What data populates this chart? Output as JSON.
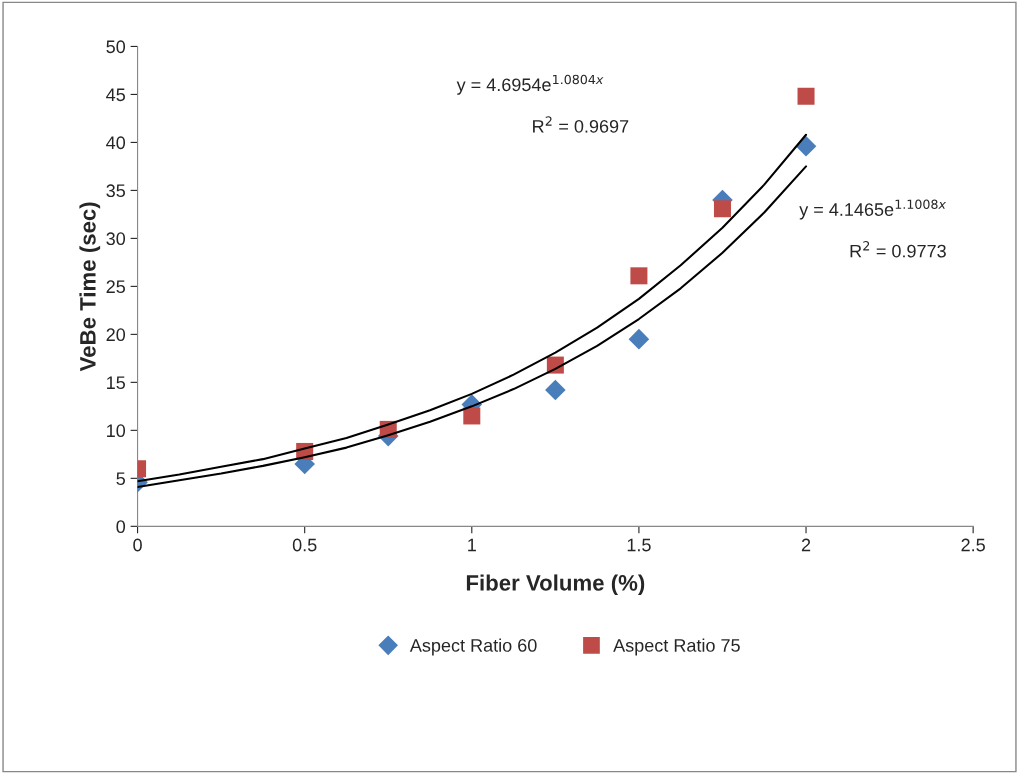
{
  "chart_data": {
    "type": "scatter",
    "xlabel": "Fiber Volume (%)",
    "ylabel": "VeBe Time (sec)",
    "x": [
      0,
      0.5,
      0.75,
      1,
      1.25,
      1.5,
      1.75,
      2
    ],
    "series": [
      {
        "name": "Aspect Ratio 60",
        "color": "#4a7ebb",
        "marker": "diamond",
        "values": [
          4.6,
          6.5,
          9.4,
          12.7,
          14.2,
          19.5,
          34,
          39.6
        ]
      },
      {
        "name": "Aspect Ratio 75",
        "color": "#be4b48",
        "marker": "square",
        "values": [
          6.0,
          7.8,
          10.1,
          11.5,
          16.8,
          26.1,
          33.1,
          44.8
        ]
      },
      {
        "type": "line",
        "color": "#000000",
        "marker": "none",
        "x": [
          0,
          0.125,
          0.25,
          0.375,
          0.5,
          0.625,
          0.75,
          0.875,
          1,
          1.125,
          1.25,
          1.375,
          1.5,
          1.625,
          1.75,
          1.875,
          2
        ],
        "values": [
          4.7,
          5.4,
          6.2,
          7.0,
          8.1,
          9.2,
          10.6,
          12.1,
          13.8,
          15.8,
          18.1,
          20.7,
          23.7,
          27.2,
          31.1,
          35.6,
          40.8
        ]
      },
      {
        "type": "line",
        "color": "#000000",
        "marker": "none",
        "x": [
          0,
          0.125,
          0.25,
          0.375,
          0.5,
          0.625,
          0.75,
          0.875,
          1,
          1.125,
          1.25,
          1.375,
          1.5,
          1.625,
          1.75,
          1.875,
          2
        ],
        "values": [
          4.1,
          4.8,
          5.5,
          6.3,
          7.2,
          8.2,
          9.5,
          10.9,
          12.5,
          14.3,
          16.4,
          18.8,
          21.6,
          24.8,
          28.5,
          32.7,
          37.5
        ]
      }
    ],
    "annotations": [
      "y = 4.6954e$^{1.0804x}$",
      "R$^{2}$ = 0.9697",
      "y = 4.1465e$^{1.1008x}$",
      "R$^{2}$ = 0.9773"
    ],
    "xlim": [
      0,
      2.5
    ],
    "xticks": [
      0,
      0.5,
      1,
      1.5,
      2,
      2.5
    ],
    "ylim": [
      0,
      50
    ],
    "yticks": [
      0,
      5,
      10,
      15,
      20,
      25,
      30,
      35,
      40,
      45,
      50
    ],
    "grid": false,
    "legend": "bottom"
  }
}
